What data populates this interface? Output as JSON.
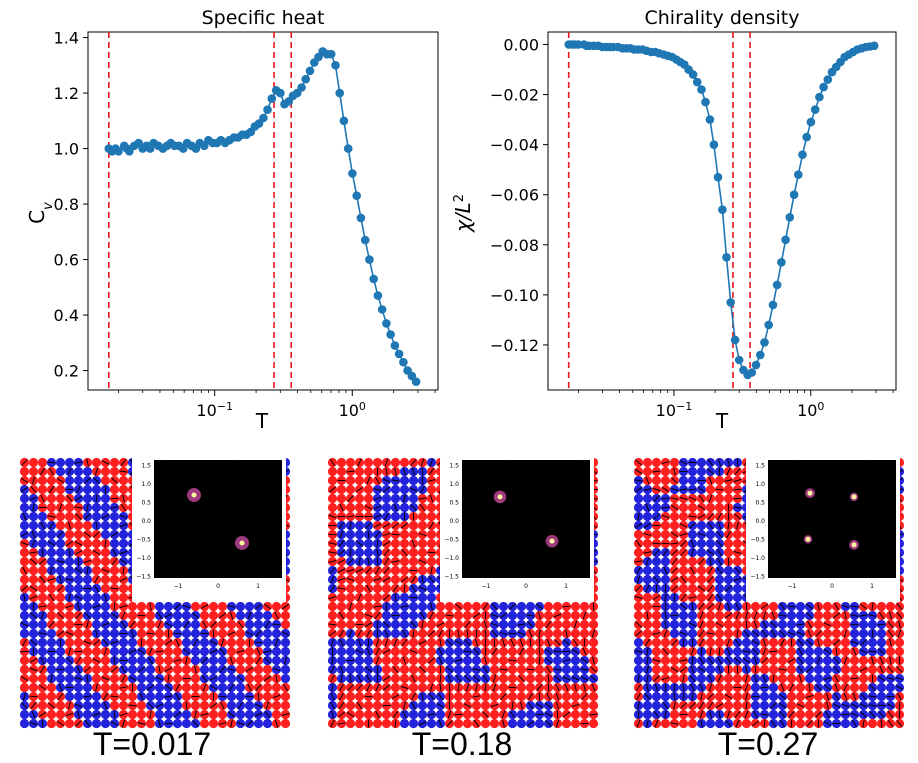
{
  "colors": {
    "series": "#1f77b4",
    "vline": "#e8151b",
    "spin_up": "#ff1f1f",
    "spin_down": "#2323dc",
    "arrow": "#000000",
    "sf_background": "#000000",
    "sf_peak": "#fff6a0",
    "sf_glow": "#d14ea8"
  },
  "chart_data": [
    {
      "type": "line",
      "title": "Specific heat",
      "xlabel": "T",
      "ylabel": "C_v",
      "xscale": "log",
      "xlim": [
        0.012,
        4.2
      ],
      "ylim": [
        0.13,
        1.42
      ],
      "yticks": [
        0.2,
        0.4,
        0.6,
        0.8,
        1.0,
        1.2,
        1.4
      ],
      "ytick_labels": [
        "0.2",
        "0.4",
        "0.6",
        "0.8",
        "1.0",
        "1.2",
        "1.4"
      ],
      "xticks": [
        0.1,
        1
      ],
      "xtick_labels": [
        "10",
        "10"
      ],
      "xtick_exponents": [
        "−1",
        "0"
      ],
      "vlines": [
        0.017,
        0.27,
        0.36
      ],
      "series": [
        {
          "x": [
            0.017,
            0.018,
            0.019,
            0.02,
            0.022,
            0.023,
            0.024,
            0.026,
            0.028,
            0.03,
            0.032,
            0.034,
            0.036,
            0.039,
            0.042,
            0.045,
            0.048,
            0.051,
            0.055,
            0.059,
            0.063,
            0.068,
            0.073,
            0.078,
            0.084,
            0.09,
            0.097,
            0.104,
            0.111,
            0.119,
            0.128,
            0.138,
            0.148,
            0.159,
            0.17,
            0.183,
            0.196,
            0.21,
            0.226,
            0.242,
            0.26,
            0.28,
            0.3,
            0.322,
            0.346,
            0.371,
            0.398,
            0.428,
            0.459,
            0.493,
            0.53,
            0.568,
            0.61,
            0.655,
            0.703,
            0.755,
            0.811,
            0.87,
            0.934,
            1.003,
            1.077,
            1.156,
            1.241,
            1.333,
            1.431,
            1.536,
            1.649,
            1.771,
            1.901,
            2.041,
            2.192,
            2.353,
            2.526,
            2.712,
            2.912
          ],
          "y": [
            1.0,
            0.99,
            1.0,
            0.99,
            1.01,
            1.0,
            0.99,
            1.01,
            1.02,
            1.0,
            1.01,
            1.0,
            1.02,
            1.01,
            1.0,
            1.01,
            1.02,
            1.01,
            1.01,
            1.0,
            1.02,
            1.01,
            1.0,
            1.02,
            1.01,
            1.03,
            1.02,
            1.02,
            1.03,
            1.02,
            1.03,
            1.04,
            1.04,
            1.05,
            1.05,
            1.06,
            1.08,
            1.09,
            1.11,
            1.14,
            1.18,
            1.21,
            1.2,
            1.16,
            1.17,
            1.19,
            1.2,
            1.22,
            1.25,
            1.28,
            1.31,
            1.33,
            1.35,
            1.34,
            1.34,
            1.3,
            1.2,
            1.1,
            1.0,
            0.91,
            0.83,
            0.75,
            0.67,
            0.6,
            0.53,
            0.47,
            0.42,
            0.37,
            0.33,
            0.29,
            0.26,
            0.23,
            0.2,
            0.18,
            0.16
          ]
        }
      ]
    },
    {
      "type": "line",
      "title": "Chirality density",
      "xlabel": "T",
      "ylabel": "χ/L",
      "ylabel_superscript": "2",
      "xscale": "log",
      "xlim": [
        0.012,
        4.2
      ],
      "ylim": [
        -0.138,
        0.005
      ],
      "yticks": [
        0.0,
        -0.02,
        -0.04,
        -0.06,
        -0.08,
        -0.1,
        -0.12
      ],
      "ytick_labels": [
        "0.00",
        "−0.02",
        "−0.04",
        "−0.06",
        "−0.08",
        "−0.10",
        "−0.12"
      ],
      "xticks": [
        0.1,
        1
      ],
      "xtick_labels": [
        "10",
        "10"
      ],
      "xtick_exponents": [
        "−1",
        "0"
      ],
      "vlines": [
        0.017,
        0.27,
        0.36
      ],
      "series": [
        {
          "x": [
            0.017,
            0.018,
            0.019,
            0.02,
            0.022,
            0.023,
            0.024,
            0.026,
            0.028,
            0.03,
            0.032,
            0.034,
            0.036,
            0.039,
            0.042,
            0.045,
            0.048,
            0.051,
            0.055,
            0.059,
            0.063,
            0.068,
            0.073,
            0.078,
            0.084,
            0.09,
            0.097,
            0.104,
            0.111,
            0.119,
            0.128,
            0.138,
            0.148,
            0.159,
            0.17,
            0.183,
            0.196,
            0.21,
            0.226,
            0.242,
            0.26,
            0.28,
            0.3,
            0.322,
            0.346,
            0.371,
            0.398,
            0.428,
            0.459,
            0.493,
            0.53,
            0.568,
            0.61,
            0.655,
            0.703,
            0.755,
            0.811,
            0.87,
            0.934,
            1.003,
            1.077,
            1.156,
            1.241,
            1.333,
            1.431,
            1.536,
            1.649,
            1.771,
            1.901,
            2.041,
            2.192,
            2.353,
            2.526,
            2.712,
            2.912
          ],
          "y": [
            0.0,
            0.0,
            0.0,
            0.0,
            0.0,
            -0.0005,
            -0.0005,
            -0.0005,
            -0.0005,
            -0.001,
            -0.001,
            -0.001,
            -0.001,
            -0.001,
            -0.0015,
            -0.0015,
            -0.0015,
            -0.002,
            -0.002,
            -0.002,
            -0.0025,
            -0.003,
            -0.003,
            -0.0035,
            -0.004,
            -0.0045,
            -0.005,
            -0.006,
            -0.007,
            -0.008,
            -0.01,
            -0.012,
            -0.015,
            -0.018,
            -0.023,
            -0.03,
            -0.04,
            -0.053,
            -0.066,
            -0.085,
            -0.103,
            -0.118,
            -0.126,
            -0.13,
            -0.132,
            -0.131,
            -0.128,
            -0.124,
            -0.119,
            -0.112,
            -0.104,
            -0.096,
            -0.087,
            -0.078,
            -0.069,
            -0.06,
            -0.052,
            -0.044,
            -0.037,
            -0.031,
            -0.026,
            -0.021,
            -0.017,
            -0.014,
            -0.011,
            -0.009,
            -0.007,
            -0.005,
            -0.004,
            -0.003,
            -0.002,
            -0.0015,
            -0.001,
            -0.0008,
            -0.0005
          ]
        }
      ]
    }
  ],
  "snapshots": [
    {
      "label": "T=0.017",
      "inset": {
        "ticks": [
          "−1",
          "0",
          "1"
        ],
        "yticks": [
          "1.5",
          "1.0",
          "0.5",
          "0.0",
          "−0.5",
          "−1.0",
          "−1.5"
        ],
        "peaks": [
          [
            -0.6,
            0.65,
            1.0
          ],
          [
            0.6,
            -0.65,
            1.0
          ]
        ]
      }
    },
    {
      "label": "T=0.18",
      "inset": {
        "ticks": [
          "−1",
          "0",
          "1"
        ],
        "yticks": [
          "1.5",
          "1.0",
          "0.5",
          "0.0",
          "−0.5",
          "−1.0",
          "−1.5"
        ],
        "peaks": [
          [
            -0.65,
            0.6,
            0.9
          ],
          [
            0.65,
            -0.6,
            0.9
          ]
        ]
      }
    },
    {
      "label": "T=0.27",
      "inset": {
        "ticks": [
          "−1",
          "0",
          "1"
        ],
        "yticks": [
          "1.5",
          "1.0",
          "0.5",
          "0.0",
          "−0.5",
          "−1.0",
          "−1.5"
        ],
        "peaks": [
          [
            -0.55,
            0.7,
            0.7
          ],
          [
            0.55,
            -0.7,
            0.7
          ],
          [
            0.55,
            0.6,
            0.6
          ],
          [
            -0.6,
            -0.55,
            0.6
          ]
        ]
      }
    }
  ]
}
